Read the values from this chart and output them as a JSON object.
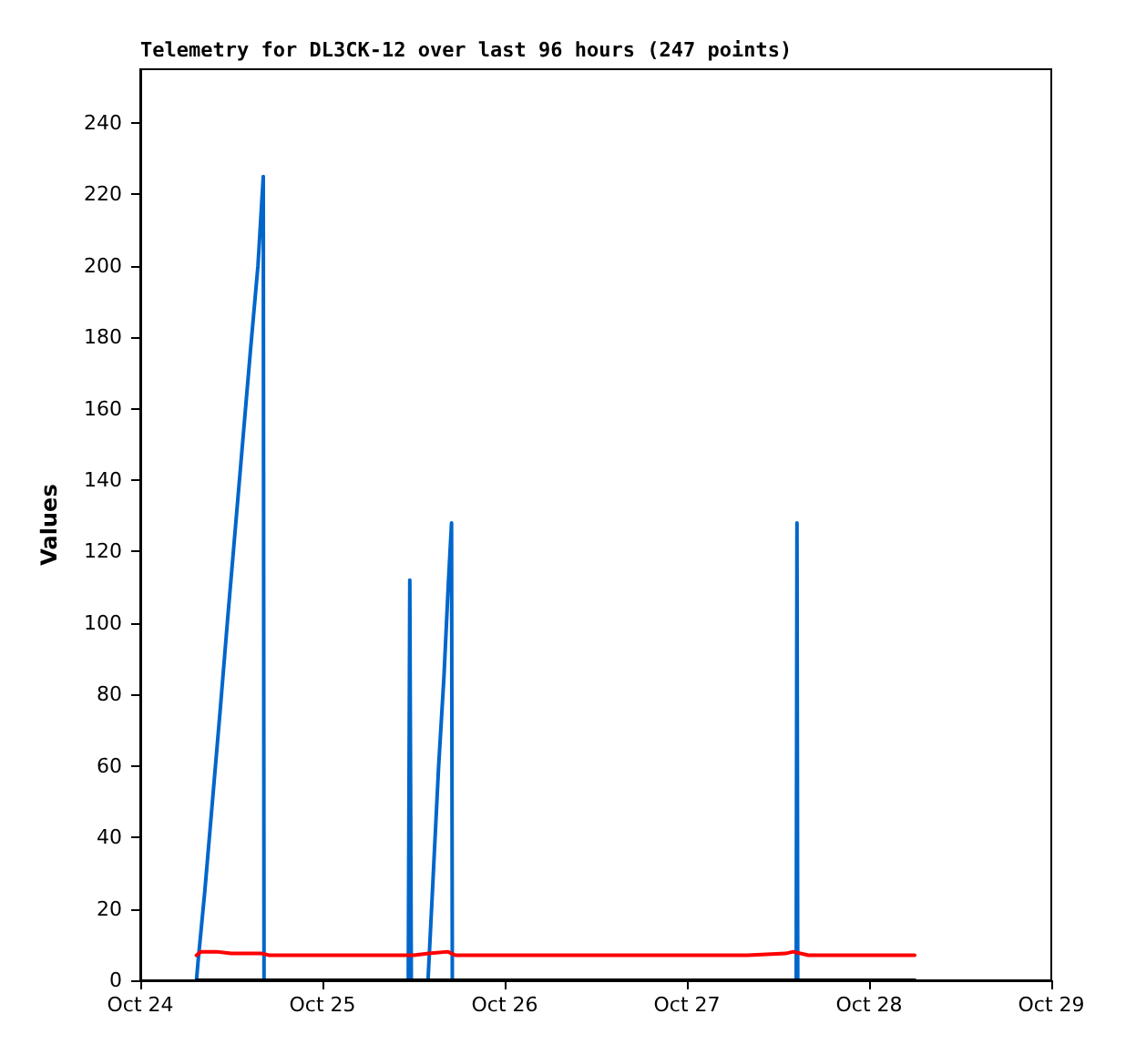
{
  "chart_data": {
    "type": "line",
    "title": "Telemetry for DL3CK-12 over last 96 hours (247 points)",
    "ylabel": "Values",
    "xlim": [
      "--10-24",
      "--10-29"
    ],
    "xticks": [
      {
        "value": "--10-24",
        "label": "Oct 24"
      },
      {
        "value": "--10-25",
        "label": "Oct 25"
      },
      {
        "value": "--10-26",
        "label": "Oct 26"
      },
      {
        "value": "--10-27",
        "label": "Oct 27"
      },
      {
        "value": "--10-28",
        "label": "Oct 28"
      },
      {
        "value": "--10-29",
        "label": "Oct 29"
      }
    ],
    "ylim": [
      0,
      255
    ],
    "yticks": [
      0,
      20,
      40,
      60,
      80,
      100,
      120,
      140,
      160,
      180,
      200,
      220,
      240
    ],
    "grid": false,
    "marker": "none",
    "line_style": "solid",
    "series": [
      {
        "color": "#0066cc",
        "x": [
          "--10-24T07:24",
          "--10-24T07:36",
          "--10-24T08:30",
          "--10-24T09:30",
          "--10-24T10:30",
          "--10-24T11:30",
          "--10-24T12:30",
          "--10-24T13:30",
          "--10-24T14:30",
          "--10-24T15:30",
          "--10-24T16:12",
          "--10-24T16:18",
          "--10-25T11:18",
          "--10-25T11:30",
          "--10-25T11:42",
          "--10-25T13:54",
          "--10-25T14:36",
          "--10-25T15:18",
          "--10-25T16:00",
          "--10-25T16:36",
          "--10-25T17:00",
          "--10-25T17:06",
          "--10-27T14:24",
          "--10-27T14:30",
          "--10-27T14:36",
          "--10-28T06:00"
        ],
        "values": [
          0,
          5,
          25,
          50,
          75,
          101,
          126,
          151,
          176,
          200,
          225,
          0,
          0,
          112,
          0,
          0,
          30,
          60,
          85,
          112,
          128,
          0,
          0,
          128,
          0,
          0
        ]
      },
      {
        "color": "#ff0000",
        "x": [
          "--10-24T07:24",
          "--10-24T08:00",
          "--10-24T10:00",
          "--10-24T12:00",
          "--10-24T16:00",
          "--10-24T17:00",
          "--10-25T12:00",
          "--10-25T14:00",
          "--10-25T16:30",
          "--10-25T17:30",
          "--10-27T08:00",
          "--10-27T13:00",
          "--10-27T14:00",
          "--10-27T16:00",
          "--10-28T06:00"
        ],
        "values": [
          7,
          8,
          8,
          7.5,
          7.5,
          7,
          7,
          7.5,
          8,
          7,
          7,
          7.5,
          8,
          7,
          7
        ]
      },
      {
        "color": "#000000",
        "x": [
          "--10-24T07:24",
          "--10-28T06:00"
        ],
        "values": [
          0,
          0
        ]
      }
    ]
  }
}
